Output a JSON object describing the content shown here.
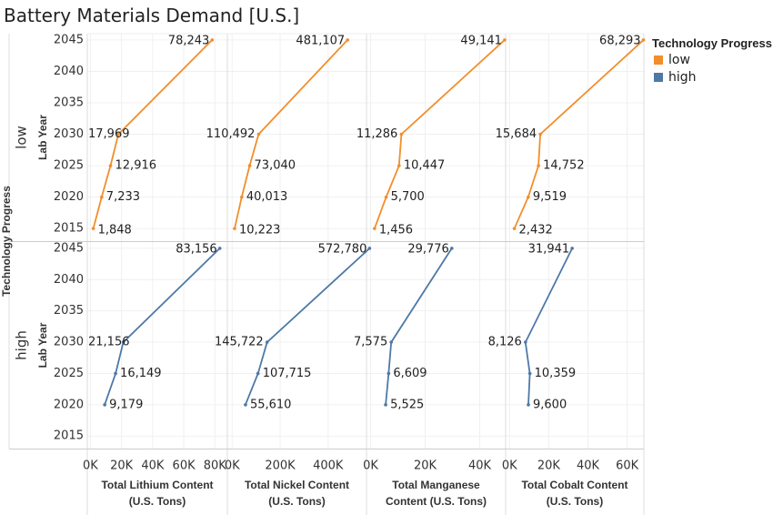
{
  "title": "Battery Materials Demand [U.S.]",
  "legend": {
    "title": "Technology Progress",
    "items": [
      {
        "label": "low",
        "color": "#f28e2b"
      },
      {
        "label": "high",
        "color": "#4e79a7"
      }
    ]
  },
  "chart_data": {
    "type": "line",
    "row_dimension_label": "Technology Progress",
    "row_axis_label": "Lab Year",
    "y_ticks": [
      "2015",
      "2020",
      "2025",
      "2030",
      "2035",
      "2040",
      "2045"
    ],
    "ylim": [
      2013,
      2046
    ],
    "rows": [
      {
        "label": "low",
        "color": "#f28e2b"
      },
      {
        "label": "high",
        "color": "#4e79a7"
      }
    ],
    "columns": [
      {
        "xlabel_lines": [
          "Total Lithium Content",
          "(U.S. Tons)"
        ],
        "xlim": [
          -2000,
          88000
        ],
        "x_ticks": [
          {
            "v": 0,
            "label": "0K"
          },
          {
            "v": 20000,
            "label": "20K"
          },
          {
            "v": 40000,
            "label": "40K"
          },
          {
            "v": 60000,
            "label": "60K"
          },
          {
            "v": 80000,
            "label": "80K"
          }
        ],
        "series": {
          "low": [
            {
              "year": 2015,
              "value": 1848,
              "label": "1,848"
            },
            {
              "year": 2020,
              "value": 7233,
              "label": "7,233"
            },
            {
              "year": 2025,
              "value": 12916,
              "label": "12,916"
            },
            {
              "year": 2030,
              "value": 17969,
              "label": "17,969"
            },
            {
              "year": 2045,
              "value": 78243,
              "label": "78,243"
            }
          ],
          "high": [
            {
              "year": 2020,
              "value": 9179,
              "label": "9,179"
            },
            {
              "year": 2025,
              "value": 16149,
              "label": "16,149"
            },
            {
              "year": 2030,
              "value": 21156,
              "label": "21,156"
            },
            {
              "year": 2045,
              "value": 83156,
              "label": "83,156"
            }
          ]
        }
      },
      {
        "xlabel_lines": [
          "Total Nickel Content",
          "(U.S. Tons)"
        ],
        "xlim": [
          -20000,
          560000
        ],
        "x_ticks": [
          {
            "v": 0,
            "label": "0K"
          },
          {
            "v": 200000,
            "label": "200K"
          },
          {
            "v": 400000,
            "label": "400K"
          }
        ],
        "series": {
          "low": [
            {
              "year": 2015,
              "value": 10223,
              "label": "10,223"
            },
            {
              "year": 2020,
              "value": 40013,
              "label": "40,013"
            },
            {
              "year": 2025,
              "value": 73040,
              "label": "73,040"
            },
            {
              "year": 2030,
              "value": 110492,
              "label": "110,492"
            },
            {
              "year": 2045,
              "value": 481107,
              "label": "481,107"
            }
          ],
          "high": [
            {
              "year": 2020,
              "value": 55610,
              "label": "55,610"
            },
            {
              "year": 2025,
              "value": 107715,
              "label": "107,715"
            },
            {
              "year": 2030,
              "value": 145722,
              "label": "145,722"
            },
            {
              "year": 2045,
              "value": 572780,
              "label": "572,780"
            }
          ]
        }
      },
      {
        "xlabel_lines": [
          "Total Manganese",
          "Content (U.S. Tons)"
        ],
        "xlim": [
          -1500,
          49500
        ],
        "x_ticks": [
          {
            "v": 0,
            "label": "0K"
          },
          {
            "v": 20000,
            "label": "20K"
          },
          {
            "v": 40000,
            "label": "40K"
          }
        ],
        "series": {
          "low": [
            {
              "year": 2015,
              "value": 1456,
              "label": "1,456"
            },
            {
              "year": 2020,
              "value": 5700,
              "label": "5,700"
            },
            {
              "year": 2025,
              "value": 10447,
              "label": "10,447"
            },
            {
              "year": 2030,
              "value": 11286,
              "label": "11,286"
            },
            {
              "year": 2045,
              "value": 49141,
              "label": "49,141"
            }
          ],
          "high": [
            {
              "year": 2020,
              "value": 5525,
              "label": "5,525"
            },
            {
              "year": 2025,
              "value": 6609,
              "label": "6,609"
            },
            {
              "year": 2030,
              "value": 7575,
              "label": "7,575"
            },
            {
              "year": 2045,
              "value": 29776,
              "label": "29,776"
            }
          ]
        }
      },
      {
        "xlabel_lines": [
          "Total Cobalt Content",
          "(U.S. Tons)"
        ],
        "xlim": [
          -2000,
          68500
        ],
        "x_ticks": [
          {
            "v": 0,
            "label": "0K"
          },
          {
            "v": 20000,
            "label": "20K"
          },
          {
            "v": 40000,
            "label": "40K"
          },
          {
            "v": 60000,
            "label": "60K"
          }
        ],
        "series": {
          "low": [
            {
              "year": 2015,
              "value": 2432,
              "label": "2,432"
            },
            {
              "year": 2020,
              "value": 9519,
              "label": "9,519"
            },
            {
              "year": 2025,
              "value": 14752,
              "label": "14,752"
            },
            {
              "year": 2030,
              "value": 15684,
              "label": "15,684"
            },
            {
              "year": 2045,
              "value": 68293,
              "label": "68,293"
            }
          ],
          "high": [
            {
              "year": 2020,
              "value": 9600,
              "label": "9,600"
            },
            {
              "year": 2025,
              "value": 10359,
              "label": "10,359"
            },
            {
              "year": 2030,
              "value": 8126,
              "label": "8,126"
            },
            {
              "year": 2045,
              "value": 31941,
              "label": "31,941"
            }
          ]
        }
      }
    ]
  }
}
